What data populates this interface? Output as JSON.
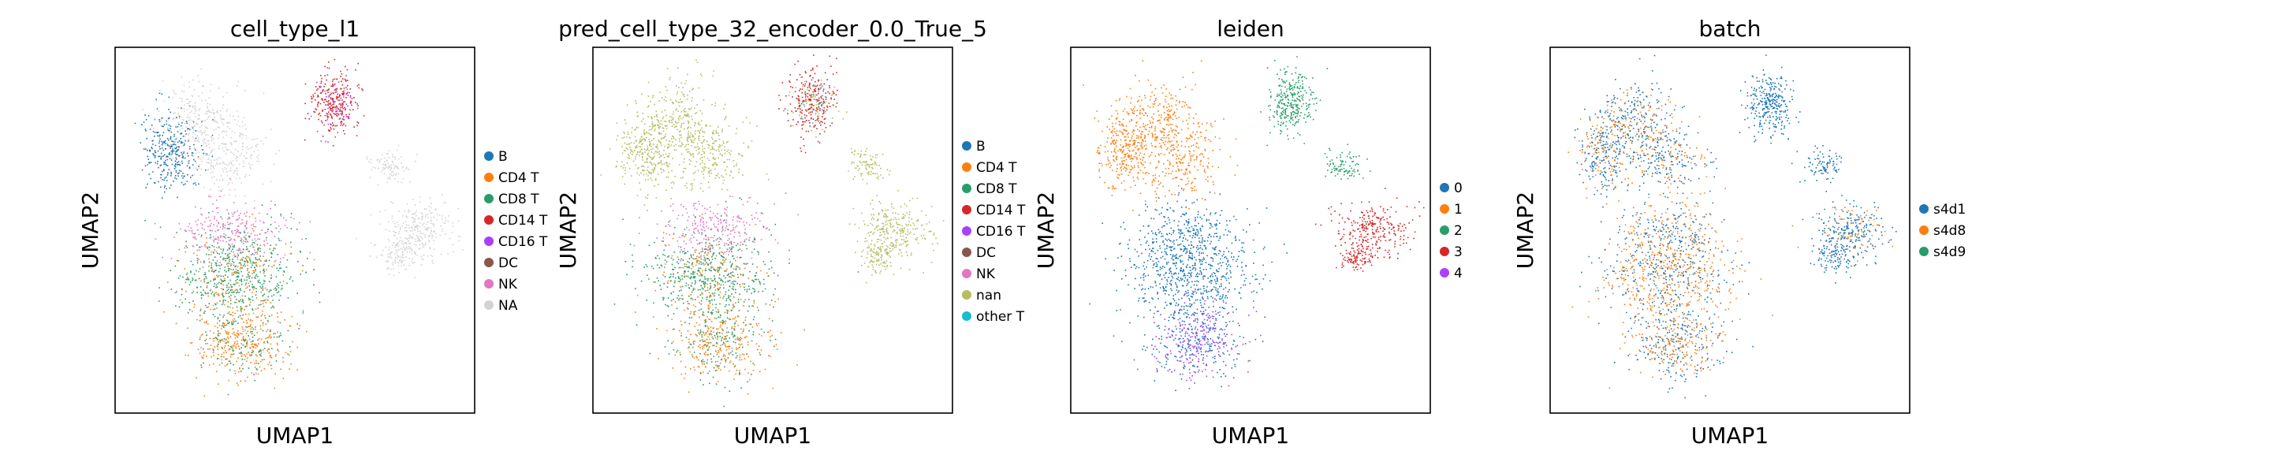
{
  "chart_data": [
    {
      "type": "scatter",
      "title": "cell_type_l1",
      "xlabel": "UMAP1",
      "ylabel": "UMAP2",
      "grid": false,
      "legend_position": "right",
      "series": [
        {
          "name": "B",
          "color": "#1f77b4"
        },
        {
          "name": "CD4 T",
          "color": "#ff7f0e"
        },
        {
          "name": "CD8 T",
          "color": "#279e68"
        },
        {
          "name": "CD14 T",
          "color": "#d62728"
        },
        {
          "name": "CD16 T",
          "color": "#aa40fc"
        },
        {
          "name": "DC",
          "color": "#8c564b"
        },
        {
          "name": "NK",
          "color": "#e377c2"
        },
        {
          "name": "NA",
          "color": "#d3d3d3"
        }
      ]
    },
    {
      "type": "scatter",
      "title": "pred_cell_type_32_encoder_0.0_True_5",
      "xlabel": "UMAP1",
      "ylabel": "UMAP2",
      "grid": false,
      "legend_position": "right",
      "series": [
        {
          "name": "B",
          "color": "#1f77b4"
        },
        {
          "name": "CD4 T",
          "color": "#ff7f0e"
        },
        {
          "name": "CD8 T",
          "color": "#279e68"
        },
        {
          "name": "CD14 T",
          "color": "#d62728"
        },
        {
          "name": "CD16 T",
          "color": "#aa40fc"
        },
        {
          "name": "DC",
          "color": "#8c564b"
        },
        {
          "name": "NK",
          "color": "#e377c2"
        },
        {
          "name": "nan",
          "color": "#b5bd61"
        },
        {
          "name": "other T",
          "color": "#17becf"
        }
      ]
    },
    {
      "type": "scatter",
      "title": "leiden",
      "xlabel": "UMAP1",
      "ylabel": "UMAP2",
      "grid": false,
      "legend_position": "right",
      "series": [
        {
          "name": "0",
          "color": "#1f77b4"
        },
        {
          "name": "1",
          "color": "#ff7f0e"
        },
        {
          "name": "2",
          "color": "#279e68"
        },
        {
          "name": "3",
          "color": "#d62728"
        },
        {
          "name": "4",
          "color": "#aa40fc"
        }
      ]
    },
    {
      "type": "scatter",
      "title": "batch",
      "xlabel": "UMAP1",
      "ylabel": "UMAP2",
      "grid": false,
      "legend_position": "right",
      "series": [
        {
          "name": "s4d1",
          "color": "#1f77b4"
        },
        {
          "name": "s4d8",
          "color": "#ff7f0e"
        },
        {
          "name": "s4d9",
          "color": "#279e68"
        }
      ]
    }
  ]
}
